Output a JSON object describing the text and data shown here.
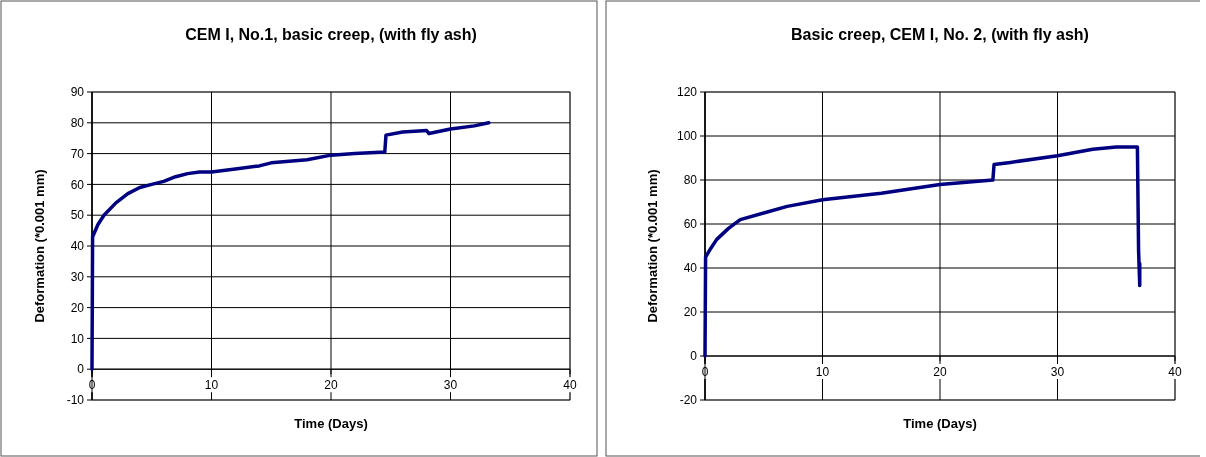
{
  "chart_data": [
    {
      "type": "line",
      "title": "CEM I, No.1, basic creep, (with fly ash)",
      "xlabel": "Time (Days)",
      "ylabel": "Deformation  (*0.001  mm)",
      "x": [
        0,
        0.05,
        0.5,
        1,
        2,
        3,
        4,
        5,
        6,
        7,
        8,
        9,
        10,
        12,
        14,
        15,
        18,
        20,
        22,
        24.5,
        24.6,
        26,
        28,
        28.2,
        30,
        32,
        33.2
      ],
      "series": [
        {
          "color": "#000080",
          "values": [
            0,
            43,
            47,
            50,
            54,
            57,
            59,
            60,
            61,
            62.5,
            63.5,
            64,
            64,
            65,
            66,
            67,
            68,
            69.5,
            70,
            70.5,
            76,
            77,
            77.5,
            76.5,
            78,
            79,
            80
          ]
        }
      ],
      "xlim": [
        0,
        40
      ],
      "xticks": [
        0,
        10,
        20,
        30,
        40
      ],
      "ylim": [
        -10,
        90
      ],
      "yticks": [
        -10,
        0,
        10,
        20,
        30,
        40,
        50,
        60,
        70,
        80,
        90
      ],
      "grid": true,
      "marker": "none",
      "line_style": "solid"
    },
    {
      "type": "line",
      "title": "Basic creep, CEM I, No. 2, (with fly ash)",
      "xlabel": "Time (Days)",
      "ylabel": "Deformation  (*0.001  mm)",
      "x": [
        0,
        0.05,
        0.5,
        1,
        2,
        3,
        5,
        7,
        10,
        15,
        20,
        24.5,
        24.6,
        26,
        30,
        33,
        35,
        36.8,
        36.9,
        37,
        37
      ],
      "series": [
        {
          "color": "#000080",
          "values": [
            0,
            45,
            49,
            53,
            58,
            62,
            65,
            68,
            71,
            74,
            78,
            80,
            87,
            88,
            91,
            94,
            95,
            95,
            48,
            32,
            42
          ]
        }
      ],
      "xlim": [
        0,
        40
      ],
      "xticks": [
        0,
        10,
        20,
        30,
        40
      ],
      "ylim": [
        -20,
        120
      ],
      "yticks": [
        -20,
        0,
        20,
        40,
        60,
        80,
        100,
        120
      ],
      "grid": true,
      "marker": "none",
      "line_style": "solid"
    }
  ]
}
